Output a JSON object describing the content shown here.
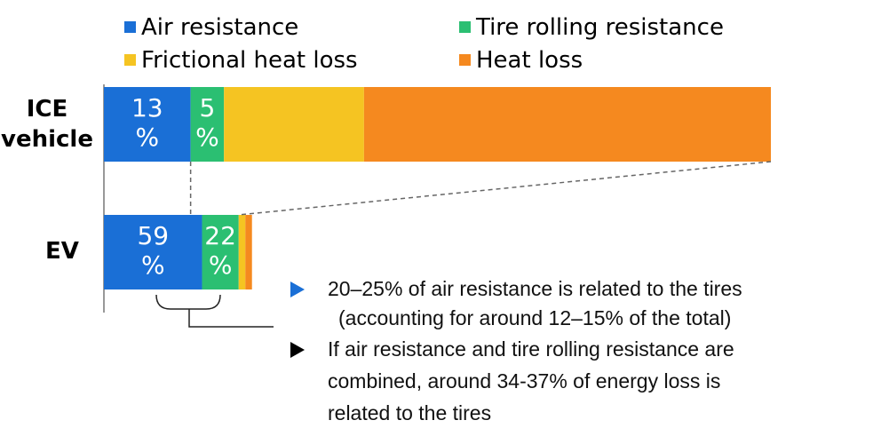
{
  "chart_data": {
    "type": "bar",
    "orientation": "horizontal",
    "stacked": true,
    "categories": [
      "ICE vehicle",
      "EV"
    ],
    "series": [
      {
        "name": "Air resistance",
        "color": "#1a6fd6",
        "values": [
          13,
          59
        ]
      },
      {
        "name": "Tire rolling resistance",
        "color": "#2bbf72",
        "values": [
          5,
          22
        ]
      },
      {
        "name": "Frictional heat loss",
        "color": "#f5c422",
        "values": [
          21,
          4
        ]
      },
      {
        "name": "Heat loss",
        "color": "#f5891f",
        "values": [
          61,
          4
        ]
      }
    ],
    "data_labels": {
      "ice": {
        "air": "13",
        "tire": "5",
        "unit": "%"
      },
      "ev": {
        "air": "59",
        "tire": "22",
        "unit": "%"
      }
    },
    "legend_position": "top",
    "ev_bar_scale_relative_to_ice": 0.222,
    "grid": false
  },
  "row_labels": {
    "ice": [
      "ICE",
      "vehicle"
    ],
    "ev": "EV"
  },
  "notes": [
    {
      "marker_color": "#1a6fd6",
      "line1": "20–25% of air resistance is related to the tires",
      "line2": "(accounting for around 12–15% of the total)"
    },
    {
      "marker_color": "#000000",
      "lines": [
        "If air resistance and tire rolling resistance are",
        "combined, around 34-37% of energy loss is",
        "related to the tires"
      ]
    }
  ]
}
